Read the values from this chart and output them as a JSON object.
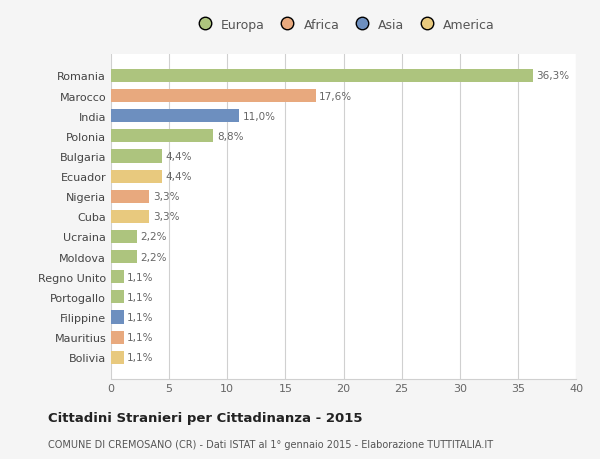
{
  "countries": [
    "Romania",
    "Marocco",
    "India",
    "Polonia",
    "Bulgaria",
    "Ecuador",
    "Nigeria",
    "Cuba",
    "Ucraina",
    "Moldova",
    "Regno Unito",
    "Portogallo",
    "Filippine",
    "Mauritius",
    "Bolivia"
  ],
  "values": [
    36.3,
    17.6,
    11.0,
    8.8,
    4.4,
    4.4,
    3.3,
    3.3,
    2.2,
    2.2,
    1.1,
    1.1,
    1.1,
    1.1,
    1.1
  ],
  "labels": [
    "36,3%",
    "17,6%",
    "11,0%",
    "8,8%",
    "4,4%",
    "4,4%",
    "3,3%",
    "3,3%",
    "2,2%",
    "2,2%",
    "1,1%",
    "1,1%",
    "1,1%",
    "1,1%",
    "1,1%"
  ],
  "colors": [
    "#adc47e",
    "#e8a97e",
    "#6d8fbf",
    "#adc47e",
    "#adc47e",
    "#e8c97e",
    "#e8a97e",
    "#e8c97e",
    "#adc47e",
    "#adc47e",
    "#adc47e",
    "#adc47e",
    "#6d8fbf",
    "#e8a97e",
    "#e8c97e"
  ],
  "legend_labels": [
    "Europa",
    "Africa",
    "Asia",
    "America"
  ],
  "legend_colors": [
    "#adc47e",
    "#e8a97e",
    "#6d8fbf",
    "#e8c97e"
  ],
  "title": "Cittadini Stranieri per Cittadinanza - 2015",
  "subtitle": "COMUNE DI CREMOSANO (CR) - Dati ISTAT al 1° gennaio 2015 - Elaborazione TUTTITALIA.IT",
  "xlim": [
    0,
    40
  ],
  "xticks": [
    0,
    5,
    10,
    15,
    20,
    25,
    30,
    35,
    40
  ],
  "background_color": "#f5f5f5",
  "bar_background": "#ffffff",
  "grid_color": "#d0d0d0"
}
